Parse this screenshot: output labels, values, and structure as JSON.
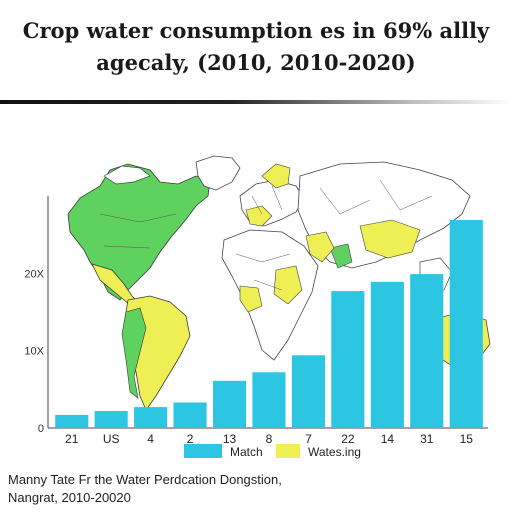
{
  "title_line1": "Crop water consumption es in 69% allly",
  "title_line2": "agecaly, (2010, 2010-2020)",
  "caption_line1": "Manny Tate Fr the Water Perdcation Dongstion,",
  "caption_line2": "Nangrat, 2010-20020",
  "colors": {
    "bar": "#2cc5e2",
    "land_green": "#5ed15e",
    "land_yellow": "#eeee55",
    "land_outline": "#555555",
    "axis": "#444444"
  },
  "chart_data": {
    "type": "bar",
    "title": "Crop water consumption es in 69% allly agecaly, (2010, 2010-2020)",
    "categories": [
      "21",
      "US",
      "4",
      "2",
      "13",
      "8",
      "7",
      "22",
      "14",
      "31",
      "15"
    ],
    "series": [
      {
        "name": "Match",
        "values": [
          1.7,
          2.2,
          2.7,
          3.3,
          6.1,
          7.2,
          9.4,
          17.7,
          18.9,
          19.9,
          26.9
        ]
      }
    ],
    "y_ticks": [
      {
        "value": 0,
        "label": "0"
      },
      {
        "value": 10,
        "label": "10X"
      },
      {
        "value": 20,
        "label": "20X"
      }
    ],
    "ylim": [
      0,
      30
    ],
    "legend": {
      "position": "bottom-center",
      "items": [
        {
          "label": "Match",
          "color": "#2cc5e2"
        },
        {
          "label": "Wates.ing",
          "color": "#eeee55"
        }
      ]
    },
    "grid": false,
    "background": "world-map"
  }
}
